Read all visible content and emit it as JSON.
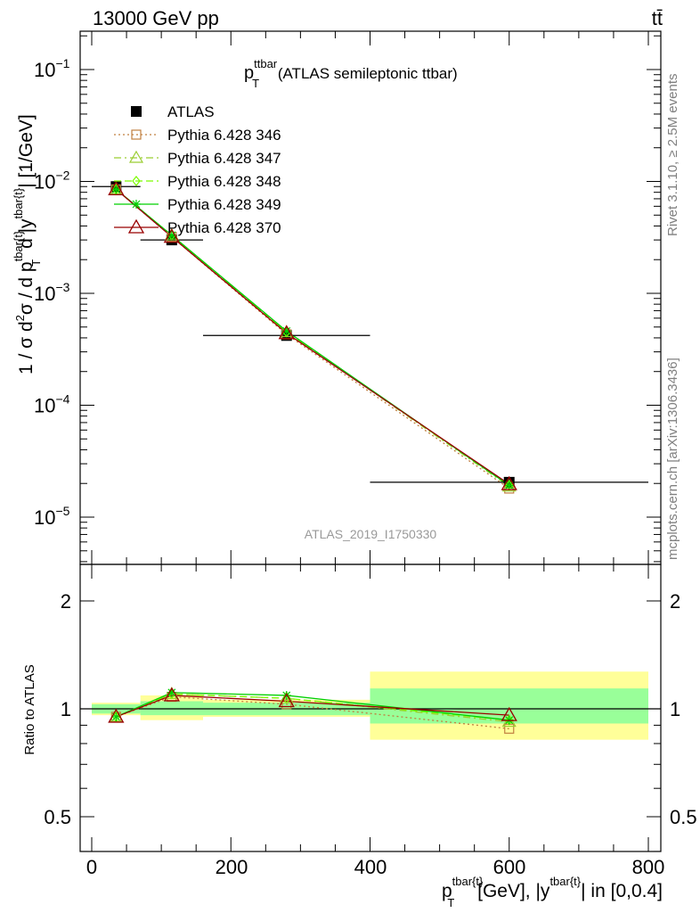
{
  "header": {
    "energy_label": "13000 GeV pp",
    "process_label": "tt̄",
    "plot_title": "p",
    "plot_title_sup": "ttbar",
    "plot_title_sub": "T",
    "plot_title_rest": " (ATLAS semileptonic ttbar)",
    "analysis_id": "ATLAS_2019_I1750330"
  },
  "side_labels": {
    "rivet": "Rivet 3.1.10, ≥ 2.5M events",
    "mcplots": "mcplots.cern.ch [arXiv:1306.3436]"
  },
  "axes": {
    "top_ylabel": "1 / σ d²σ / d p^{tbar{t}}_T d |y^{tbar{t}}| [1/GeV]",
    "bottom_ylabel": "Ratio to ATLAS",
    "xlabel": "p^{tbar{t}}_T [GeV], |y^{tbar{t}}| in [0,0.4]",
    "x_ticks": [
      "0",
      "200",
      "400",
      "600",
      "800"
    ],
    "top_yticks": [
      "10^{-5}",
      "10^{-4}",
      "10^{-3}",
      "10^{-2}",
      "10^{-1}"
    ],
    "ratio_ticks_left": [
      "0.5",
      "1",
      "2"
    ],
    "ratio_ticks_right": [
      "0.5",
      "1",
      "2"
    ]
  },
  "colors": {
    "atlas": "#000000",
    "p346": "#c08040",
    "p347": "#9acd32",
    "p348": "#7cfc00",
    "p349": "#00d000",
    "p370": "#990000",
    "band_inner": "#99ff99",
    "band_outer": "#ffff99"
  },
  "chart_data": {
    "type": "line",
    "title": "p_T^{ttbar} (ATLAS semileptonic ttbar)",
    "xlabel": "p^{tbar{t}}_T [GeV], |y^{tbar{t}}| in [0,0.4]",
    "ylabel": "1 / σ d²σ / d p^{tbar{t}}_T d |y^{tbar{t}}| [1/GeV]",
    "xlim": [
      -20,
      810
    ],
    "ylim": [
      4e-06,
      0.25
    ],
    "yscale": "log",
    "legend_position": "top-left",
    "bins": [
      [
        0,
        70
      ],
      [
        70,
        160
      ],
      [
        160,
        400
      ],
      [
        400,
        800
      ]
    ],
    "x": [
      35,
      115,
      280,
      600
    ],
    "series": [
      {
        "name": "ATLAS",
        "values": [
          0.009,
          0.003,
          0.00042,
          2.05e-05
        ]
      },
      {
        "name": "Pythia 6.428 346",
        "values": [
          0.0085,
          0.0032,
          0.00043,
          1.8e-05
        ]
      },
      {
        "name": "Pythia 6.428 347",
        "values": [
          0.0085,
          0.0033,
          0.00045,
          1.88e-05
        ]
      },
      {
        "name": "Pythia 6.428 348",
        "values": [
          0.0085,
          0.0033,
          0.00045,
          1.92e-05
        ]
      },
      {
        "name": "Pythia 6.428 349",
        "values": [
          0.0085,
          0.0033,
          0.00046,
          1.92e-05
        ]
      },
      {
        "name": "Pythia 6.428 370",
        "values": [
          0.0085,
          0.0032,
          0.00044,
          1.97e-05
        ]
      }
    ],
    "ratio": {
      "ylabel": "Ratio to ATLAS",
      "ylim": [
        0.4,
        2.4
      ],
      "yscale": "log",
      "band_inner": [
        [
          0.97,
          1.03
        ],
        [
          0.96,
          1.05
        ],
        [
          0.96,
          1.04
        ],
        [
          0.91,
          1.14
        ]
      ],
      "band_outer": [
        [
          0.96,
          1.04
        ],
        [
          0.93,
          1.09
        ],
        [
          0.95,
          1.06
        ],
        [
          0.82,
          1.27
        ]
      ],
      "series": [
        {
          "name": "Pythia 6.428 346",
          "values": [
            0.95,
            1.08,
            1.03,
            0.88
          ]
        },
        {
          "name": "Pythia 6.428 347",
          "values": [
            0.95,
            1.1,
            1.07,
            0.92
          ]
        },
        {
          "name": "Pythia 6.428 348",
          "values": [
            0.95,
            1.1,
            1.07,
            0.93
          ]
        },
        {
          "name": "Pythia 6.428 349",
          "values": [
            0.95,
            1.11,
            1.09,
            0.93
          ]
        },
        {
          "name": "Pythia 6.428 370",
          "values": [
            0.95,
            1.09,
            1.05,
            0.96
          ]
        }
      ]
    }
  }
}
